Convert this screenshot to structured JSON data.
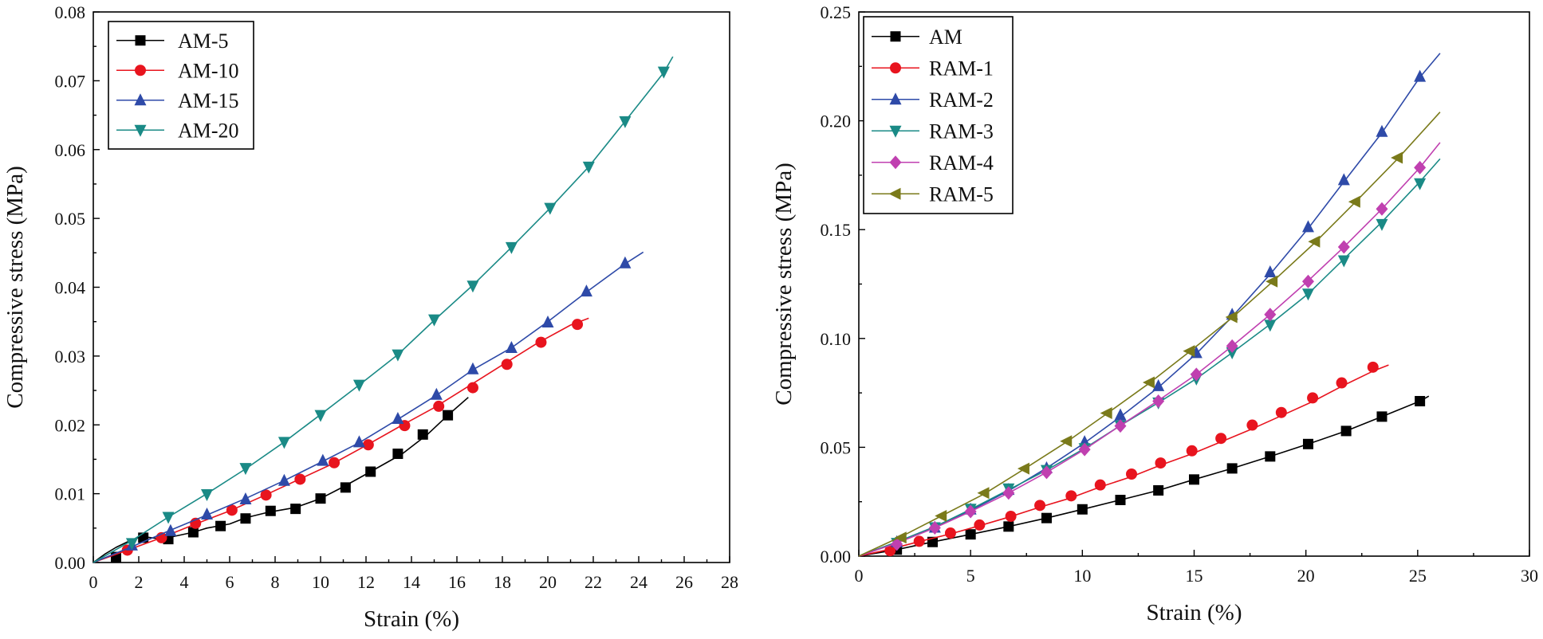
{
  "chart_data": [
    {
      "type": "line",
      "title": "",
      "xlabel": "Strain (%)",
      "ylabel": "Compressive stress (MPa)",
      "xlim": [
        0,
        28
      ],
      "ylim": [
        0,
        0.08
      ],
      "xticks": [
        "0",
        "2",
        "4",
        "6",
        "8",
        "10",
        "12",
        "14",
        "16",
        "18",
        "20",
        "22",
        "24",
        "26",
        "28"
      ],
      "yticks": [
        "0.00",
        "0.01",
        "0.02",
        "0.03",
        "0.04",
        "0.05",
        "0.06",
        "0.07",
        "0.08"
      ],
      "legend_position": "top-left",
      "series": [
        {
          "name": "AM-5",
          "color": "#000000",
          "marker": "square",
          "x": [
            0,
            0.5,
            1.0,
            1.5,
            2.1,
            3.0,
            4.4,
            5.0,
            6.0,
            6.7,
            7.7,
            8.9,
            10.0,
            11.0,
            12.2,
            13.6,
            14.7,
            15.6,
            16.5
          ],
          "y": [
            0,
            0.0012,
            0.0022,
            0.003,
            0.0038,
            0.0034,
            0.0044,
            0.005,
            0.0056,
            0.0065,
            0.0073,
            0.008,
            0.0093,
            0.011,
            0.0132,
            0.0158,
            0.0186,
            0.0214,
            0.024
          ],
          "marker_x": [
            1.0,
            2.2,
            3.3,
            4.4,
            5.6,
            6.7,
            7.8,
            8.9,
            10.0,
            11.1,
            12.2,
            13.4,
            14.5,
            15.6
          ],
          "marker_y": [
            0.0008,
            0.0036,
            0.0034,
            0.0044,
            0.0053,
            0.0064,
            0.0075,
            0.0078,
            0.0093,
            0.0109,
            0.0132,
            0.0158,
            0.0186,
            0.0214
          ]
        },
        {
          "name": "AM-10",
          "color": "#e8141e",
          "marker": "circle",
          "x": [
            0,
            1.5,
            3.0,
            4.5,
            6.0,
            7.5,
            9.0,
            10.5,
            12.0,
            13.5,
            15.0,
            16.5,
            18.0,
            19.5,
            21.0,
            21.8
          ],
          "y": [
            0,
            0.0018,
            0.0036,
            0.0056,
            0.0075,
            0.0097,
            0.012,
            0.0143,
            0.017,
            0.0198,
            0.0225,
            0.0256,
            0.0287,
            0.0318,
            0.0345,
            0.0355
          ],
          "marker_x": [
            1.5,
            3.0,
            4.5,
            6.1,
            7.6,
            9.1,
            10.6,
            12.1,
            13.7,
            15.2,
            16.7,
            18.2,
            19.7,
            21.3
          ],
          "marker_y": [
            0.0018,
            0.0036,
            0.0057,
            0.0076,
            0.0098,
            0.0121,
            0.0145,
            0.0171,
            0.0199,
            0.0227,
            0.0254,
            0.0288,
            0.032,
            0.0346
          ]
        },
        {
          "name": "AM-15",
          "color": "#2e4aa8",
          "marker": "triangle-up",
          "x": [
            0,
            1.7,
            3.4,
            5.0,
            6.7,
            8.4,
            10.1,
            11.7,
            13.4,
            15.1,
            16.7,
            18.4,
            20.0,
            21.7,
            23.4,
            24.2
          ],
          "y": [
            0,
            0.0023,
            0.0047,
            0.0069,
            0.0093,
            0.0119,
            0.0147,
            0.0174,
            0.0208,
            0.0243,
            0.028,
            0.0312,
            0.035,
            0.0393,
            0.0434,
            0.0451
          ],
          "marker_x": [
            1.7,
            3.4,
            5.0,
            6.7,
            8.4,
            10.1,
            11.7,
            13.4,
            15.1,
            16.7,
            18.4,
            20.0,
            21.7,
            23.4
          ],
          "marker_y": [
            0.0025,
            0.0046,
            0.007,
            0.0092,
            0.0119,
            0.0148,
            0.0175,
            0.0209,
            0.0244,
            0.0281,
            0.0312,
            0.0349,
            0.0394,
            0.0435
          ]
        },
        {
          "name": "AM-20",
          "color": "#1a8a86",
          "marker": "triangle-down",
          "x": [
            0,
            1.7,
            3.3,
            5.0,
            6.7,
            8.4,
            10.0,
            11.7,
            13.4,
            15.0,
            16.7,
            18.4,
            20.1,
            21.8,
            23.4,
            25.1,
            25.5
          ],
          "y": [
            0,
            0.0032,
            0.0066,
            0.01,
            0.0136,
            0.0175,
            0.0215,
            0.0258,
            0.0302,
            0.0352,
            0.0403,
            0.0458,
            0.0515,
            0.0575,
            0.0641,
            0.0712,
            0.0735
          ],
          "marker_x": [
            1.7,
            3.3,
            5.0,
            6.7,
            8.4,
            10.0,
            11.7,
            13.4,
            15.0,
            16.7,
            18.4,
            20.1,
            21.8,
            23.4,
            25.1
          ],
          "marker_y": [
            0.0028,
            0.0066,
            0.0099,
            0.0137,
            0.0175,
            0.0214,
            0.0258,
            0.0302,
            0.0353,
            0.0402,
            0.0458,
            0.0515,
            0.0575,
            0.0641,
            0.0713
          ]
        }
      ]
    },
    {
      "type": "line",
      "title": "",
      "xlabel": "Strain (%)",
      "ylabel": "Compressive stress (MPa)",
      "xlim": [
        0,
        30
      ],
      "ylim": [
        0,
        0.25
      ],
      "xticks": [
        "0",
        "5",
        "10",
        "15",
        "20",
        "25",
        "30"
      ],
      "yticks": [
        "0.00",
        "0.05",
        "0.10",
        "0.15",
        "0.20",
        "0.25"
      ],
      "legend_position": "top-left",
      "series": [
        {
          "name": "AM",
          "color": "#000000",
          "marker": "square",
          "x": [
            0,
            1.7,
            3.3,
            5.0,
            6.7,
            8.4,
            10.0,
            11.7,
            13.4,
            15.0,
            16.7,
            18.4,
            20.1,
            21.8,
            23.4,
            25.1,
            25.5
          ],
          "y": [
            0,
            0.003,
            0.0065,
            0.01,
            0.0136,
            0.0175,
            0.0215,
            0.0258,
            0.0302,
            0.0352,
            0.0403,
            0.0458,
            0.0515,
            0.0575,
            0.0641,
            0.0712,
            0.0735
          ],
          "marker_x": [
            1.7,
            3.3,
            5.0,
            6.7,
            8.4,
            10.0,
            11.7,
            13.4,
            15.0,
            16.7,
            18.4,
            20.1,
            21.8,
            23.4,
            25.1
          ],
          "marker_y": [
            0.003,
            0.0065,
            0.01,
            0.0136,
            0.0175,
            0.0215,
            0.0258,
            0.0302,
            0.0352,
            0.0403,
            0.0458,
            0.0515,
            0.0575,
            0.0641,
            0.0712
          ]
        },
        {
          "name": "RAM-1",
          "color": "#e8141e",
          "marker": "circle",
          "x": [
            0,
            1.4,
            2.7,
            4.1,
            5.4,
            6.8,
            8.1,
            9.5,
            10.8,
            12.2,
            13.5,
            14.9,
            16.2,
            17.6,
            18.9,
            20.3,
            21.6,
            23.0,
            23.7
          ],
          "y": [
            0,
            0.0032,
            0.0067,
            0.0102,
            0.014,
            0.0182,
            0.0225,
            0.0268,
            0.0318,
            0.0365,
            0.0418,
            0.047,
            0.0525,
            0.0585,
            0.0645,
            0.071,
            0.078,
            0.085,
            0.0878
          ],
          "marker_x": [
            1.4,
            2.7,
            4.1,
            5.4,
            6.8,
            8.1,
            9.5,
            10.8,
            12.2,
            13.5,
            14.9,
            16.2,
            17.6,
            18.9,
            20.3,
            21.6,
            23.0
          ],
          "marker_y": [
            0.0025,
            0.0068,
            0.0106,
            0.0143,
            0.0183,
            0.0233,
            0.0277,
            0.0327,
            0.0377,
            0.0428,
            0.0484,
            0.0541,
            0.0602,
            0.066,
            0.0727,
            0.0796,
            0.0868
          ]
        },
        {
          "name": "RAM-2",
          "color": "#2e4aa8",
          "marker": "triangle-up",
          "x": [
            0,
            1.7,
            3.4,
            5.0,
            6.7,
            8.4,
            10.1,
            11.7,
            13.4,
            15.1,
            16.7,
            18.4,
            20.1,
            21.7,
            23.4,
            25.1,
            26.0
          ],
          "y": [
            0,
            0.0065,
            0.0135,
            0.021,
            0.03,
            0.0405,
            0.052,
            0.064,
            0.0775,
            0.093,
            0.11,
            0.1295,
            0.1505,
            0.172,
            0.1945,
            0.22,
            0.231
          ],
          "marker_x": [
            1.7,
            3.4,
            5.0,
            6.7,
            8.4,
            10.1,
            11.7,
            13.4,
            15.1,
            16.7,
            18.4,
            20.1,
            21.7,
            23.4,
            25.1
          ],
          "marker_y": [
            0.0065,
            0.0132,
            0.0215,
            0.0305,
            0.0405,
            0.0525,
            0.0648,
            0.0782,
            0.0934,
            0.111,
            0.1305,
            0.1512,
            0.1728,
            0.195,
            0.2203
          ]
        },
        {
          "name": "RAM-3",
          "color": "#1a8a86",
          "marker": "triangle-down",
          "x": [
            0,
            1.7,
            3.4,
            5.0,
            6.7,
            8.4,
            10.1,
            11.7,
            13.4,
            15.1,
            16.7,
            18.4,
            20.1,
            21.7,
            23.4,
            25.1,
            26.0
          ],
          "y": [
            0,
            0.0065,
            0.0135,
            0.0215,
            0.0305,
            0.0395,
            0.0495,
            0.06,
            0.0705,
            0.0815,
            0.0935,
            0.1065,
            0.1205,
            0.1365,
            0.1535,
            0.172,
            0.1825
          ],
          "marker_x": [
            1.7,
            3.4,
            5.0,
            6.7,
            8.4,
            10.1,
            11.7,
            13.4,
            15.1,
            16.7,
            18.4,
            20.1,
            21.7,
            23.4,
            25.1
          ],
          "marker_y": [
            0.006,
            0.0132,
            0.0217,
            0.031,
            0.0395,
            0.0495,
            0.06,
            0.0705,
            0.0815,
            0.0935,
            0.1062,
            0.1205,
            0.1358,
            0.1525,
            0.1712
          ]
        },
        {
          "name": "RAM-4",
          "color": "#c040b0",
          "marker": "diamond",
          "x": [
            0,
            1.7,
            3.4,
            5.0,
            6.7,
            8.4,
            10.1,
            11.7,
            13.4,
            15.1,
            16.7,
            18.4,
            20.1,
            21.7,
            23.4,
            25.1,
            26.0
          ],
          "y": [
            0,
            0.006,
            0.013,
            0.0205,
            0.029,
            0.0385,
            0.049,
            0.06,
            0.0715,
            0.0835,
            0.0965,
            0.111,
            0.1265,
            0.142,
            0.1595,
            0.1785,
            0.19
          ],
          "marker_x": [
            1.7,
            3.4,
            5.0,
            6.7,
            8.4,
            10.1,
            11.7,
            13.4,
            15.1,
            16.7,
            18.4,
            20.1,
            21.7,
            23.4,
            25.1
          ],
          "marker_y": [
            0.0055,
            0.013,
            0.0205,
            0.029,
            0.0385,
            0.049,
            0.0598,
            0.0712,
            0.0835,
            0.0965,
            0.111,
            0.1262,
            0.142,
            0.1595,
            0.1785
          ]
        },
        {
          "name": "RAM-5",
          "color": "#7a7a1a",
          "marker": "triangle-left",
          "x": [
            0,
            1.9,
            3.7,
            5.6,
            7.4,
            9.3,
            11.1,
            13.0,
            14.8,
            16.7,
            18.5,
            20.4,
            22.2,
            24.1,
            26.0
          ],
          "y": [
            0,
            0.009,
            0.0185,
            0.0285,
            0.04,
            0.0525,
            0.0655,
            0.0795,
            0.094,
            0.1095,
            0.126,
            0.144,
            0.1625,
            0.1825,
            0.204
          ],
          "marker_x": [
            1.9,
            3.7,
            5.6,
            7.4,
            9.3,
            11.1,
            13.0,
            14.8,
            16.7,
            18.5,
            20.4,
            22.2,
            24.1
          ],
          "marker_y": [
            0.0085,
            0.0185,
            0.029,
            0.0402,
            0.0528,
            0.0657,
            0.0798,
            0.0942,
            0.1098,
            0.1262,
            0.1445,
            0.1628,
            0.183
          ]
        }
      ]
    }
  ]
}
